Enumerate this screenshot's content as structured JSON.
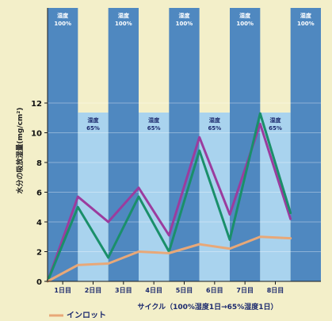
{
  "chart_data": {
    "type": "line",
    "ylabel": "水分の吸放湿量(mg/cm²)",
    "xlabel": "サイクル（100%湿度1日→65%湿度1日）",
    "ylim": [
      0,
      14
    ],
    "y_ticks": [
      "0",
      "2",
      "4",
      "6",
      "8",
      "10",
      "12"
    ],
    "x_labels": [
      "1日目",
      "2日目",
      "3日目",
      "4日目",
      "5日目",
      "6日目",
      "7日目",
      "8日目"
    ],
    "humidity_bands": [
      {
        "label": "湿度\n100%",
        "level": "high"
      },
      {
        "label": "湿度\n65%",
        "level": "low"
      },
      {
        "label": "湿度\n100%",
        "level": "high"
      },
      {
        "label": "湿度\n65%",
        "level": "low"
      },
      {
        "label": "湿度\n100%",
        "level": "high"
      },
      {
        "label": "湿度\n65%",
        "level": "low"
      },
      {
        "label": "湿度\n100%",
        "level": "high"
      },
      {
        "label": "湿度\n65%",
        "level": "low"
      },
      {
        "label": "湿度\n100%",
        "level": "high"
      }
    ],
    "x": [
      0,
      1,
      2,
      3,
      4,
      5,
      6,
      7,
      8
    ],
    "series": [
      {
        "color": "#9b3c9e",
        "values": [
          0,
          5.7,
          4.0,
          6.3,
          3.1,
          9.7,
          4.5,
          10.6,
          4.2
        ]
      },
      {
        "color": "#1a8f6a",
        "values": [
          0,
          5.0,
          1.6,
          5.7,
          2.0,
          8.8,
          2.8,
          11.3,
          4.6
        ]
      },
      {
        "name": "インロット",
        "color": "#e8a878",
        "values": [
          0,
          1.1,
          1.2,
          2.0,
          1.9,
          2.5,
          2.2,
          3.0,
          2.9
        ]
      }
    ],
    "grid": true
  }
}
